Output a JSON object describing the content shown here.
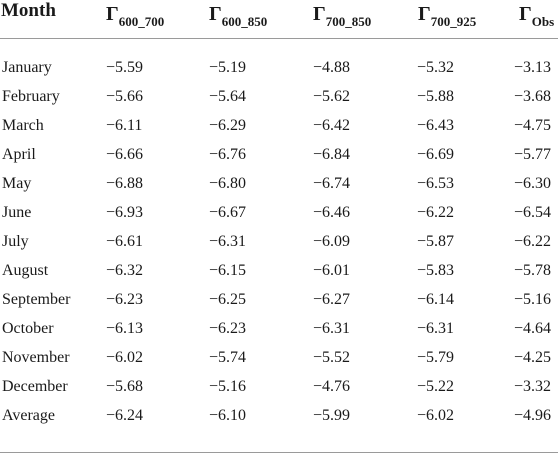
{
  "table": {
    "headers": {
      "month": "Month",
      "symbol": "Γ",
      "c1_sub": "600_700",
      "c2_sub": "600_850",
      "c3_sub": "700_850",
      "c4_sub": "700_925",
      "c5_sub": "Obs"
    },
    "rows": [
      {
        "month": "January",
        "v1": "−5.59",
        "v2": "−5.19",
        "v3": "−4.88",
        "v4": "−5.32",
        "v5": "−3.13"
      },
      {
        "month": "February",
        "v1": "−5.66",
        "v2": "−5.64",
        "v3": "−5.62",
        "v4": "−5.88",
        "v5": "−3.68"
      },
      {
        "month": "March",
        "v1": "−6.11",
        "v2": "−6.29",
        "v3": "−6.42",
        "v4": "−6.43",
        "v5": "−4.75"
      },
      {
        "month": "April",
        "v1": "−6.66",
        "v2": "−6.76",
        "v3": "−6.84",
        "v4": "−6.69",
        "v5": "−5.77"
      },
      {
        "month": "May",
        "v1": "−6.88",
        "v2": "−6.80",
        "v3": "−6.74",
        "v4": "−6.53",
        "v5": "−6.30"
      },
      {
        "month": "June",
        "v1": "−6.93",
        "v2": "−6.67",
        "v3": "−6.46",
        "v4": "−6.22",
        "v5": "−6.54"
      },
      {
        "month": "July",
        "v1": "−6.61",
        "v2": "−6.31",
        "v3": "−6.09",
        "v4": "−5.87",
        "v5": "−6.22"
      },
      {
        "month": "August",
        "v1": "−6.32",
        "v2": "−6.15",
        "v3": "−6.01",
        "v4": "−5.83",
        "v5": "−5.78"
      },
      {
        "month": "September",
        "v1": "−6.23",
        "v2": "−6.25",
        "v3": "−6.27",
        "v4": "−6.14",
        "v5": "−5.16"
      },
      {
        "month": "October",
        "v1": "−6.13",
        "v2": "−6.23",
        "v3": "−6.31",
        "v4": "−6.31",
        "v5": "−4.64"
      },
      {
        "month": "November",
        "v1": "−6.02",
        "v2": "−5.74",
        "v3": "−5.52",
        "v4": "−5.79",
        "v5": "−4.25"
      },
      {
        "month": "December",
        "v1": "−5.68",
        "v2": "−5.16",
        "v3": "−4.76",
        "v4": "−5.22",
        "v5": "−3.32"
      },
      {
        "month": "Average",
        "v1": "−6.24",
        "v2": "−6.10",
        "v3": "−5.99",
        "v4": "−6.02",
        "v5": "−4.96"
      }
    ]
  }
}
